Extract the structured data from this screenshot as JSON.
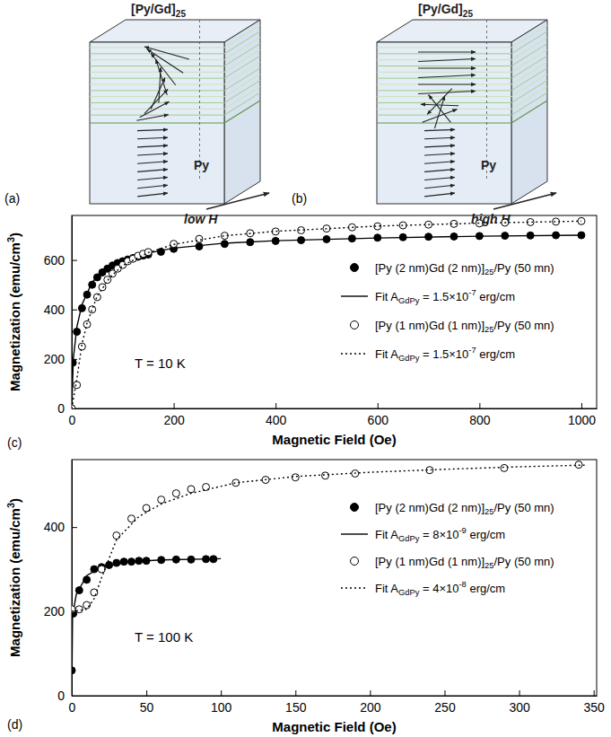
{
  "diagrams": [
    {
      "panel": "(a)",
      "top_label": "[Py/Gd]25",
      "bottom_label": "Py",
      "field_label": "low H"
    },
    {
      "panel": "(b)",
      "top_label": "[Py/Gd]25",
      "bottom_label": "Py",
      "field_label": "high H"
    }
  ],
  "chart_data": [
    {
      "type": "scatter",
      "panel": "(c)",
      "x_label": "Magnetic Field (Oe)",
      "y_label": "Magnetization (emu/cm3)",
      "annotations": [
        "T = 10 K"
      ],
      "xlim": [
        0,
        1030
      ],
      "ylim": [
        0,
        780
      ],
      "xticks": [
        0,
        200,
        400,
        600,
        800,
        1000
      ],
      "yticks": [
        0,
        200,
        400,
        600
      ],
      "grid": false,
      "legend": "right",
      "series": [
        {
          "name": "[Py (2 nm)Gd (2 nm)]25/Py (50 mn)",
          "type": "scatter",
          "marker": "filled-circle",
          "color": "#000000",
          "x": [
            2,
            10,
            20,
            30,
            40,
            50,
            60,
            70,
            80,
            90,
            100,
            110,
            120,
            130,
            140,
            150,
            175,
            200,
            250,
            300,
            350,
            400,
            450,
            500,
            550,
            600,
            650,
            700,
            750,
            800,
            850,
            900,
            950,
            1000
          ],
          "values": [
            185,
            310,
            405,
            460,
            500,
            530,
            550,
            565,
            578,
            588,
            595,
            602,
            608,
            613,
            618,
            622,
            633,
            645,
            655,
            665,
            672,
            677,
            680,
            684,
            687,
            690,
            692,
            694,
            695,
            697,
            698,
            699,
            700,
            700
          ]
        },
        {
          "name": "Fit AGdPy = 1.5×10-7 erg/cm",
          "type": "line",
          "line_style": "solid",
          "color": "#000000",
          "x": [
            0,
            3,
            10,
            20,
            40,
            60,
            100,
            150,
            200,
            300,
            400,
            600,
            800,
            1000
          ],
          "values": [
            0,
            200,
            330,
            420,
            510,
            555,
            600,
            628,
            648,
            668,
            678,
            689,
            696,
            700
          ]
        },
        {
          "name": "[Py (1 nm)Gd (1 nm)]25/Py (50 mn)",
          "type": "scatter",
          "marker": "open-circle",
          "color": "#000000",
          "x": [
            0,
            10,
            20,
            30,
            40,
            50,
            60,
            70,
            80,
            90,
            100,
            110,
            120,
            130,
            140,
            150,
            200,
            250,
            300,
            350,
            400,
            450,
            500,
            550,
            600,
            650,
            700,
            750,
            800,
            850,
            900,
            950,
            1000
          ],
          "values": [
            0,
            95,
            250,
            340,
            400,
            450,
            490,
            520,
            545,
            565,
            580,
            595,
            605,
            617,
            625,
            632,
            665,
            685,
            698,
            708,
            715,
            720,
            727,
            732,
            736,
            740,
            743,
            746,
            748,
            751,
            753,
            755,
            757
          ]
        },
        {
          "name": "Fit AGdPy = 1.5×10-7 erg/cm",
          "type": "line",
          "line_style": "dotted",
          "color": "#000000",
          "x": [
            0,
            10,
            20,
            30,
            50,
            75,
            100,
            150,
            200,
            300,
            400,
            600,
            800,
            1000
          ],
          "values": [
            0,
            120,
            260,
            345,
            455,
            530,
            578,
            630,
            663,
            698,
            716,
            737,
            749,
            757
          ]
        }
      ]
    },
    {
      "type": "scatter",
      "panel": "(d)",
      "x_label": "Magnetic Field (Oe)",
      "y_label": "Magnetization (emu/cm3)",
      "annotations": [
        "T = 100 K"
      ],
      "xlim": [
        0,
        352
      ],
      "ylim": [
        0,
        560
      ],
      "xticks": [
        0,
        50,
        100,
        150,
        200,
        250,
        300,
        350
      ],
      "yticks": [
        0,
        200,
        400
      ],
      "grid": false,
      "legend": "upper right",
      "series": [
        {
          "name": "[Py (2 nm)Gd (2 nm)]25/Py (50 mn)",
          "type": "scatter",
          "marker": "filled-circle",
          "color": "#000000",
          "x": [
            0,
            1,
            5,
            10,
            15,
            20,
            25,
            30,
            35,
            40,
            45,
            50,
            60,
            70,
            80,
            90,
            95
          ],
          "values": [
            60,
            195,
            250,
            275,
            300,
            305,
            310,
            315,
            318,
            318,
            320,
            320,
            322,
            323,
            323,
            324,
            324
          ]
        },
        {
          "name": "Fit AGdPy = 8×10-9 erg/cm",
          "type": "line",
          "line_style": "solid",
          "color": "#000000",
          "x": [
            0,
            0.5,
            3,
            10,
            20,
            40,
            60,
            100
          ],
          "values": [
            0,
            190,
            240,
            285,
            305,
            318,
            322,
            325
          ]
        },
        {
          "name": "[Py (1 nm)Gd (1 nm)]25/Py (50 mn)",
          "type": "scatter",
          "marker": "open-circle",
          "color": "#000000",
          "x": [
            0,
            5,
            10,
            15,
            20,
            30,
            40,
            50,
            60,
            70,
            80,
            90,
            110,
            130,
            150,
            170,
            190,
            240,
            290,
            340
          ],
          "values": [
            205,
            205,
            215,
            245,
            300,
            380,
            420,
            445,
            465,
            480,
            490,
            495,
            505,
            512,
            518,
            522,
            527,
            535,
            540,
            548
          ]
        },
        {
          "name": "Fit AGdPy = 4×10-8 erg/cm",
          "type": "line",
          "line_style": "dotted",
          "color": "#000000",
          "x": [
            0,
            10,
            15,
            20,
            30,
            45,
            60,
            80,
            110,
            150,
            200,
            250,
            300,
            345
          ],
          "values": [
            200,
            205,
            230,
            280,
            370,
            425,
            455,
            480,
            505,
            520,
            530,
            537,
            543,
            547
          ]
        }
      ]
    }
  ]
}
